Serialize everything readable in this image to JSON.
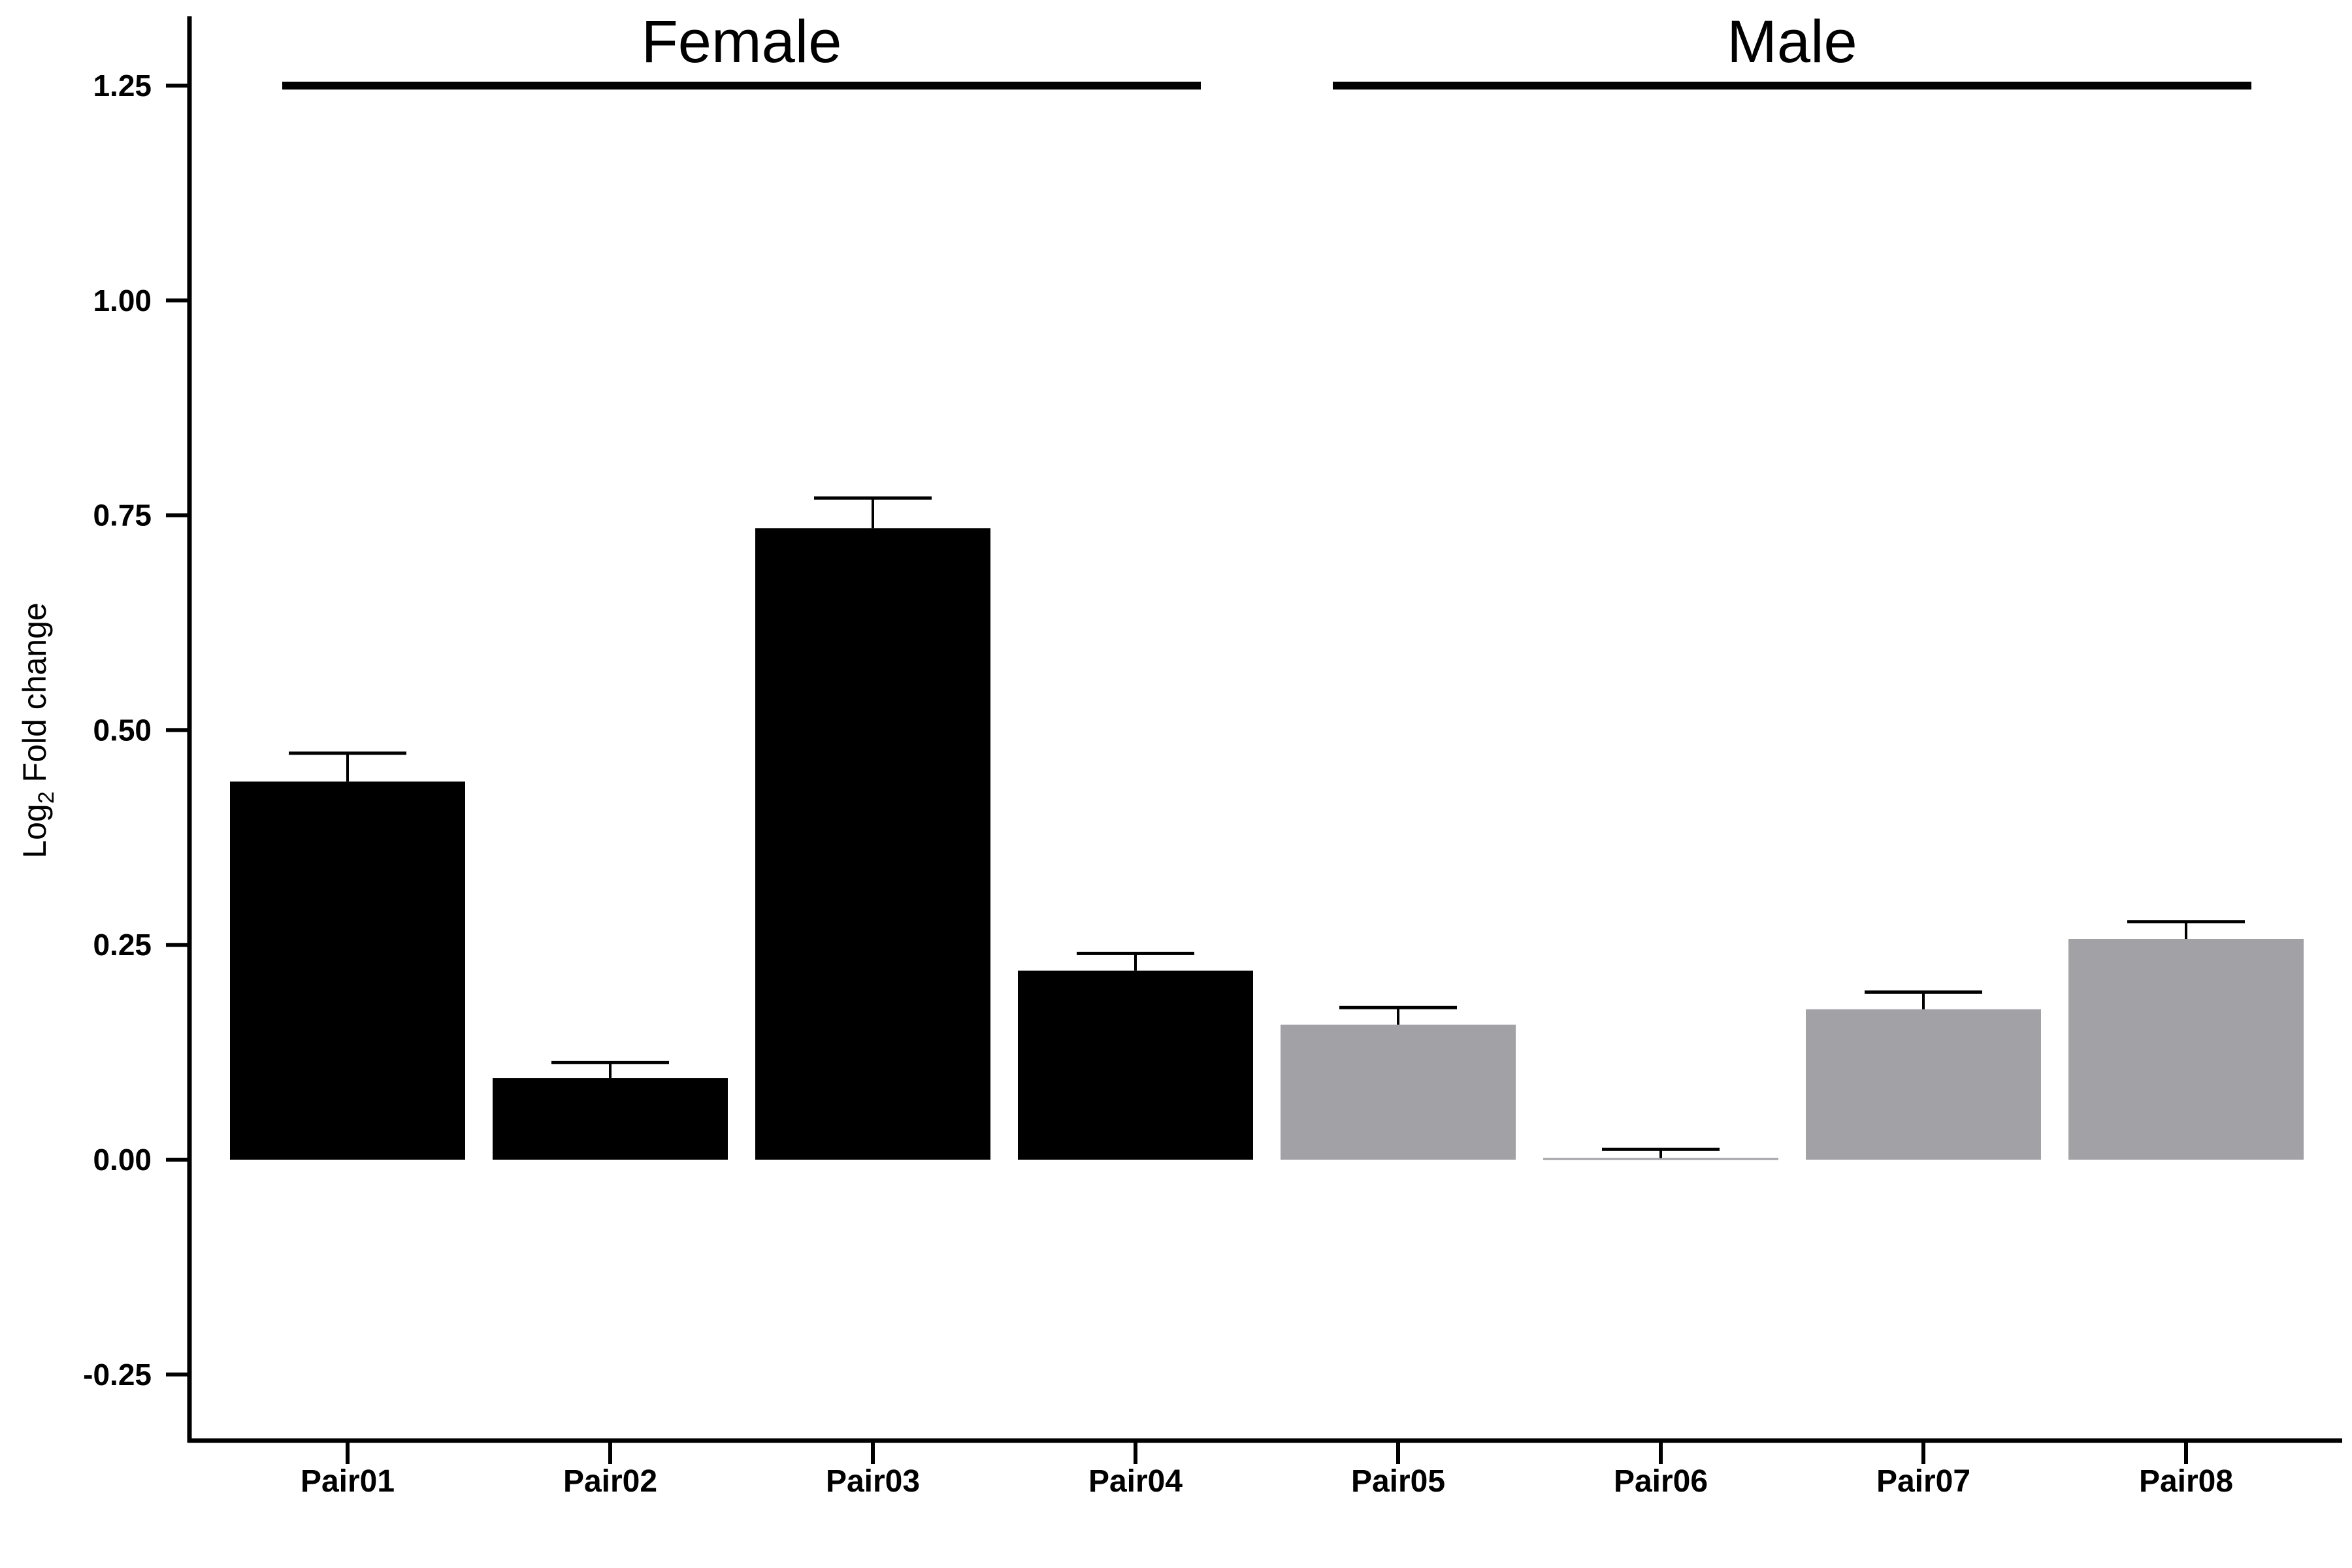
{
  "chart_data": {
    "type": "bar",
    "ylabel": "Log2 Fold change",
    "ylabel_parts": {
      "base": "Log",
      "subscript": "2",
      "rest": " Fold change"
    },
    "ylim": [
      -0.25,
      1.25
    ],
    "yticks": [
      "-0.25",
      "0.00",
      "0.25",
      "0.50",
      "0.75",
      "1.00",
      "1.25"
    ],
    "ytick_values": [
      -0.25,
      0,
      0.25,
      0.5,
      0.75,
      1.0,
      1.25
    ],
    "categories": [
      "Pair01",
      "Pair02",
      "Pair03",
      "Pair04",
      "Pair05",
      "Pair06",
      "Pair07",
      "Pair08"
    ],
    "values": [
      0.44,
      0.095,
      0.735,
      0.22,
      0.157,
      0.002,
      0.175,
      0.257
    ],
    "errors": [
      0.033,
      0.018,
      0.035,
      0.02,
      0.02,
      0.01,
      0.02,
      0.02
    ],
    "bar_colors": [
      "#000000",
      "#000000",
      "#000000",
      "#000000",
      "#a2a1a6",
      "#a2a1a6",
      "#a2a1a6",
      "#a2a1a6"
    ],
    "groups": [
      {
        "label": "Female",
        "start": 0,
        "end": 3
      },
      {
        "label": "Male",
        "start": 4,
        "end": 7
      }
    ],
    "grid": false,
    "legend": "none"
  }
}
